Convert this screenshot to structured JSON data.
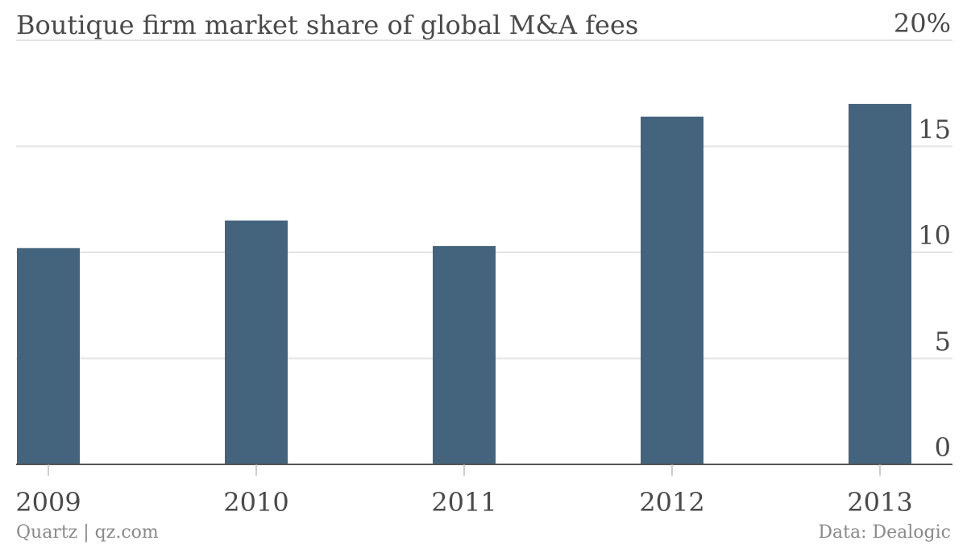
{
  "chart_data": {
    "type": "bar",
    "title": "Boutique firm market share of global M&A fees",
    "categories": [
      "2009",
      "2010",
      "2011",
      "2012",
      "2013"
    ],
    "values": [
      10.2,
      11.5,
      10.3,
      16.4,
      17.0
    ],
    "ylim": [
      0,
      20
    ],
    "yticks": [
      0,
      5,
      10,
      15,
      20
    ],
    "ytick_labels": [
      "0",
      "5",
      "10",
      "15",
      "20%"
    ],
    "y_axis_side": "right",
    "grid": true,
    "legend": "none"
  },
  "footer": {
    "source_left": "Quartz | qz.com",
    "source_right": "Data: Dealogic"
  },
  "colors": {
    "bar": "#44647e",
    "grid": "#e3e3e3",
    "axis": "#555555",
    "text": "#4a4a4a",
    "footer": "#8a8a8a"
  }
}
